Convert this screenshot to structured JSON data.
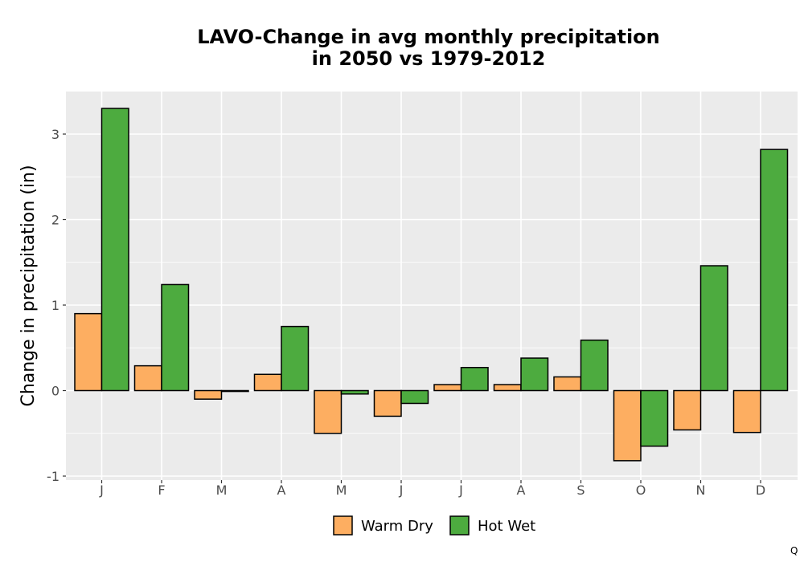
{
  "chart_data": {
    "type": "bar",
    "title_line1": "LAVO-Change in avg monthly precipitation",
    "title_line2": "in 2050 vs 1979-2012",
    "xlabel": "",
    "ylabel": "Change in precipitation (in)",
    "categories": [
      "J",
      "F",
      "M",
      "A",
      "M",
      "J",
      "J",
      "A",
      "S",
      "O",
      "N",
      "D"
    ],
    "series": [
      {
        "name": "Warm Dry",
        "color": "#fdae61",
        "values": [
          0.9,
          0.29,
          -0.1,
          0.19,
          -0.5,
          -0.3,
          0.07,
          0.07,
          0.16,
          -0.82,
          -0.46,
          -0.49
        ]
      },
      {
        "name": "Hot Wet",
        "color": "#4dab3f",
        "values": [
          3.3,
          1.24,
          -0.01,
          0.75,
          -0.04,
          -0.15,
          0.27,
          0.38,
          0.59,
          -0.65,
          1.46,
          2.82
        ]
      }
    ],
    "ylim": [
      -1.0,
      3.5
    ],
    "yticks": [
      -1,
      0,
      1,
      2,
      3
    ],
    "ytick_labels": [
      "-1",
      "0",
      "1",
      "2",
      "3"
    ],
    "grid": true,
    "legend_position": "bottom"
  },
  "corner_text": "Q"
}
